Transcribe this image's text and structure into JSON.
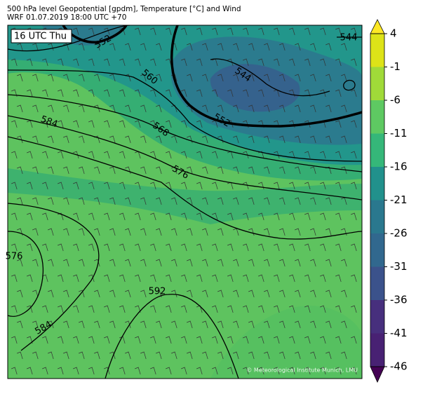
{
  "header": {
    "title": "500 hPa level Geopotential [gpdm], Temperature [°C] and Wind",
    "subtitle": "WRF 01.07.2019 18:00 UTC +70"
  },
  "time_label": "16 UTC Thu",
  "credit": "© Meteorological Institute Munich, LMU",
  "contour_labels": [
    552,
    560,
    544,
    552,
    568,
    576,
    584,
    576,
    592,
    584,
    544
  ],
  "colorbar": {
    "ticks": [
      4,
      -1,
      -6,
      -11,
      -16,
      -21,
      -26,
      -31,
      -36,
      -41,
      -46
    ],
    "colors": [
      "#dde318",
      "#a0da39",
      "#5ec962",
      "#35b779",
      "#21918c",
      "#2a788e",
      "#31688e",
      "#3b528b",
      "#472f7d",
      "#482173"
    ],
    "over_color": "#fde725",
    "under_color": "#440154"
  }
}
